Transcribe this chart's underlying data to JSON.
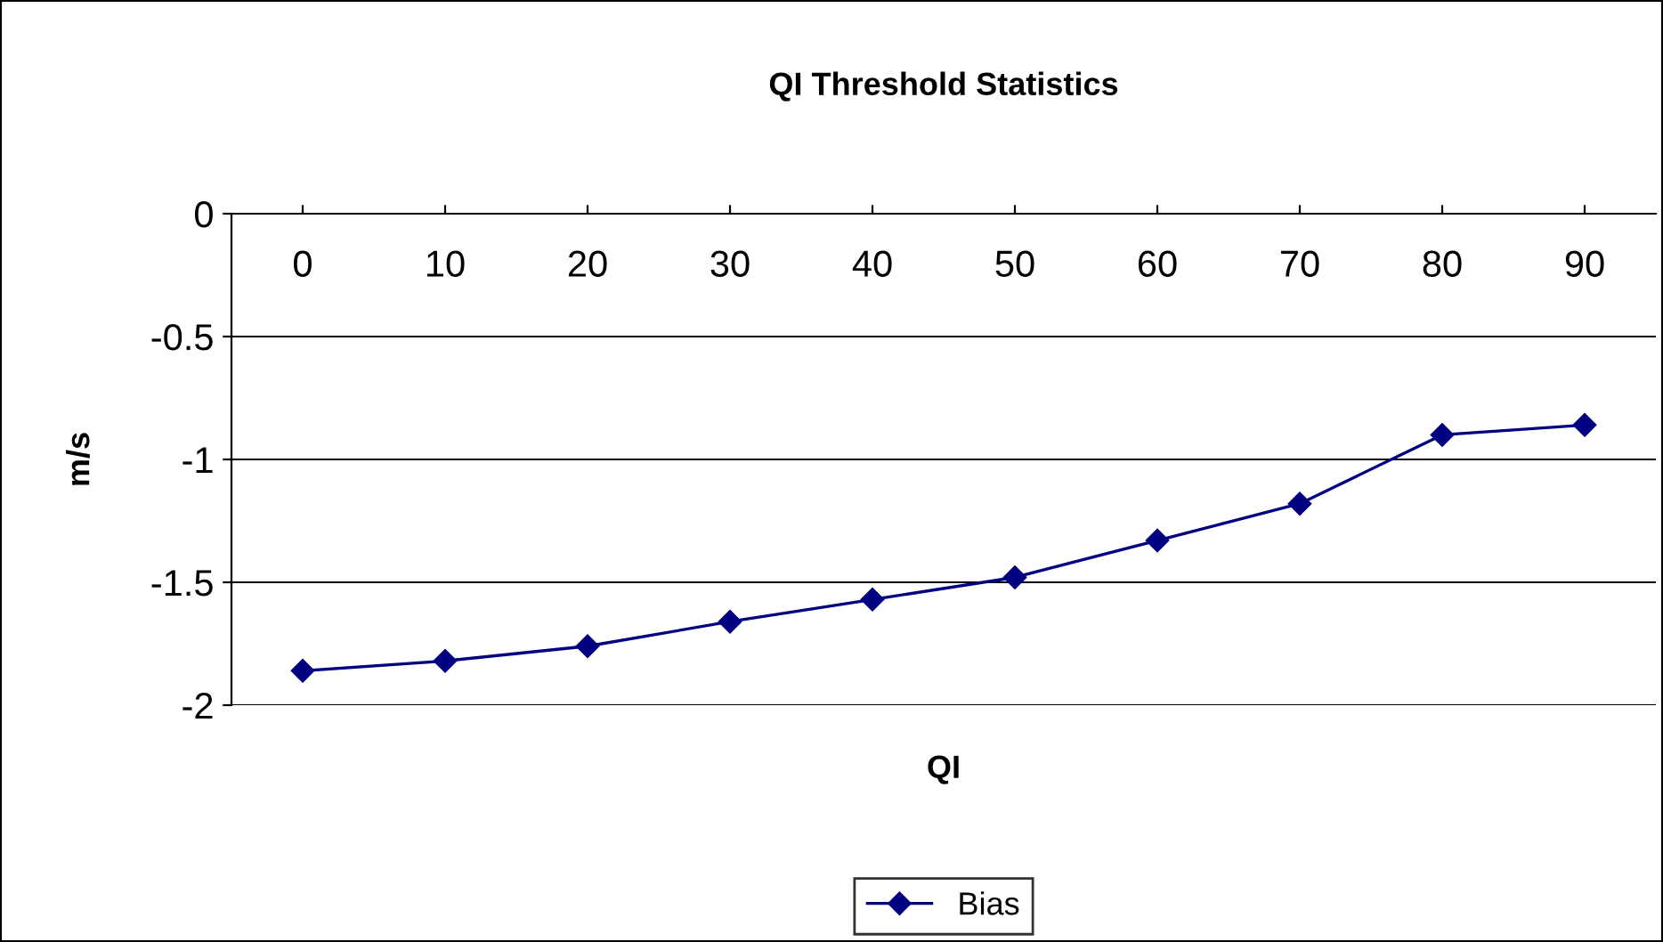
{
  "chart_data": {
    "type": "line",
    "title": "QI Threshold Statistics",
    "xlabel": "QI",
    "ylabel": "m/s",
    "categories": [
      "0",
      "10",
      "20",
      "30",
      "40",
      "50",
      "60",
      "70",
      "80",
      "90"
    ],
    "series": [
      {
        "name": "Bias",
        "color": "#000080",
        "values": [
          -1.86,
          -1.82,
          -1.76,
          -1.66,
          -1.57,
          -1.48,
          -1.33,
          -1.18,
          -0.9,
          -0.86
        ]
      }
    ],
    "ylim": [
      -2,
      0
    ],
    "yticks": [
      -2,
      -1.5,
      -1,
      -0.5,
      0
    ],
    "grid": "y",
    "legend": "bottom",
    "marker": "diamond",
    "line_style": "solid"
  }
}
